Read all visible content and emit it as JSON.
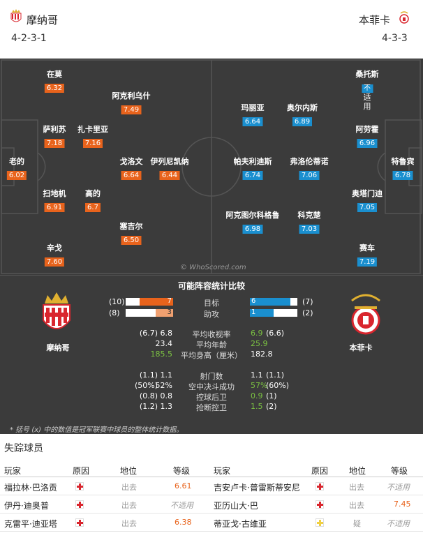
{
  "home": {
    "name": "摩纳哥",
    "formation": "4-2-3-1",
    "color": "#e8631c"
  },
  "away": {
    "name": "本菲卡",
    "formation": "4-3-3",
    "color": "#1a8fcf"
  },
  "home_players": [
    {
      "name": "在莫",
      "rating": "6.32"
    },
    {
      "name": "萨利苏",
      "rating": "7.18"
    },
    {
      "name": "扎卡里亚",
      "rating": "7.16"
    },
    {
      "name": "阿克利乌什",
      "rating": "7.49"
    },
    {
      "name": "老的",
      "rating": "6.02"
    },
    {
      "name": "戈洛文",
      "rating": "6.64"
    },
    {
      "name": "伊列尼凯纳",
      "rating": "6.44"
    },
    {
      "name": "扫地机",
      "rating": "6.91"
    },
    {
      "name": "高的",
      "rating": "6.7"
    },
    {
      "name": "塞吉尔",
      "rating": "6.50"
    },
    {
      "name": "辛戈",
      "rating": "7.60"
    }
  ],
  "away_players": [
    {
      "name": "桑托斯",
      "rating": "不",
      "rating2": "适",
      "rating3": "用"
    },
    {
      "name": "玛丽亚",
      "rating": "6.64"
    },
    {
      "name": "奥尔内斯",
      "rating": "6.89"
    },
    {
      "name": "阿劳霍",
      "rating": "6.96"
    },
    {
      "name": "帕夫利迪斯",
      "rating": "6.74"
    },
    {
      "name": "弗洛伦蒂诺",
      "rating": "7.06"
    },
    {
      "name": "特鲁宾",
      "rating": "6.78"
    },
    {
      "name": "奥塔门迪",
      "rating": "7.05"
    },
    {
      "name": "阿克图尔科格鲁",
      "rating": "6.98"
    },
    {
      "name": "科克楚",
      "rating": "7.03"
    },
    {
      "name": "赛车",
      "rating": "7.19"
    }
  ],
  "watermark": "© WhoScored.com",
  "stats": {
    "title": "可能阵容统计比较",
    "goals": {
      "label": "目标",
      "home": "7",
      "home_total": "(10)",
      "away": "6",
      "away_total": "(7)",
      "home_frac": 0.7,
      "away_frac": 0.857
    },
    "assists": {
      "label": "助攻",
      "home": "3",
      "home_total": "(8)",
      "away": "1",
      "away_total": "(2)",
      "home_frac": 0.375,
      "away_frac": 0.5
    },
    "rows": [
      {
        "label": "平均收视率",
        "home_total": "(6.7)",
        "home": "6.8",
        "away": "6.9",
        "away_total": "(6.6)",
        "home_green": false,
        "away_green": true
      },
      {
        "label": "平均年龄",
        "home_total": "",
        "home": "23.4",
        "away": "25.9",
        "away_total": "",
        "home_green": false,
        "away_green": true
      },
      {
        "label": "平均身高（厘米）",
        "home_total": "",
        "home": "185.5",
        "away": "182.8",
        "away_total": "",
        "home_green": true,
        "away_green": false
      },
      {
        "label": "射门数",
        "home_total": "(1.1)",
        "home": "1.1",
        "away": "1.1",
        "away_total": "(1.1)",
        "home_green": false,
        "away_green": false
      },
      {
        "label": "空中决斗成功",
        "home_total": "(50%)",
        "home": "52%",
        "away": "57%",
        "away_total": "(60%)",
        "home_green": false,
        "away_green": true
      },
      {
        "label": "控球后卫",
        "home_total": "(0.8)",
        "home": "0.8",
        "away": "0.9",
        "away_total": "(1)",
        "home_green": false,
        "away_green": true
      },
      {
        "label": "抢断控卫",
        "home_total": "(1.2)",
        "home": "1.3",
        "away": "1.5",
        "away_total": "(2)",
        "home_green": false,
        "away_green": true
      }
    ],
    "footnote": "* 括号 (x) 中的数值是冠军联赛中球员的整体统计数据。"
  },
  "missing": {
    "title": "失踪球员",
    "headers": [
      "玩家",
      "原因",
      "地位",
      "等级",
      "玩家",
      "原因",
      "地位",
      "等级"
    ],
    "rows": [
      {
        "h_name": "福拉林·巴洛贡",
        "h_status": "出去",
        "h_rating": "6.61",
        "a_name": "吉安卢卡·普雷斯蒂安尼",
        "a_status": "出去",
        "a_rating": "不适用"
      },
      {
        "h_name": "伊丹·迪奥普",
        "h_status": "出去",
        "h_rating": "不适用",
        "a_name": "亚历山大·巴",
        "a_status": "出去",
        "a_rating": "7.45"
      },
      {
        "h_name": "克雷平·迪亚塔",
        "h_status": "出去",
        "h_rating": "6.38",
        "a_name": "蒂亚戈·古维亚",
        "a_status": "疑",
        "a_rating": "不适用"
      }
    ]
  }
}
